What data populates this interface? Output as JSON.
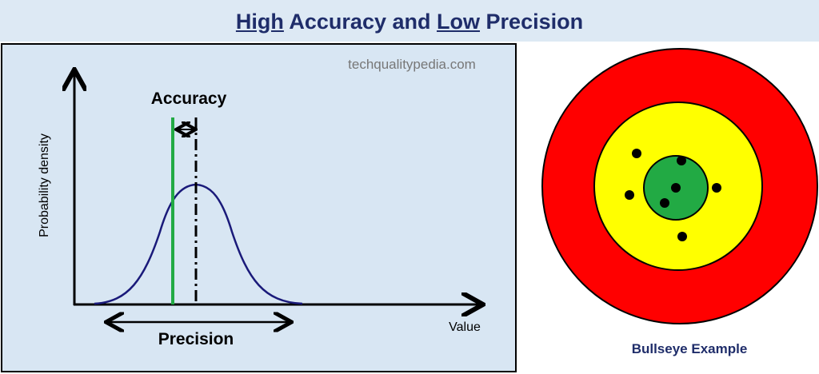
{
  "title": [
    "High",
    "Accuracy and",
    "Low",
    "Precision"
  ],
  "watermark": "techqualitypedia.com",
  "chart": {
    "y_axis_label": "Probability density",
    "x_axis_label": "Value",
    "accuracy_label": "Accuracy",
    "precision_label": "Precision"
  },
  "bullseye": {
    "caption": "Bullseye Example"
  }
}
